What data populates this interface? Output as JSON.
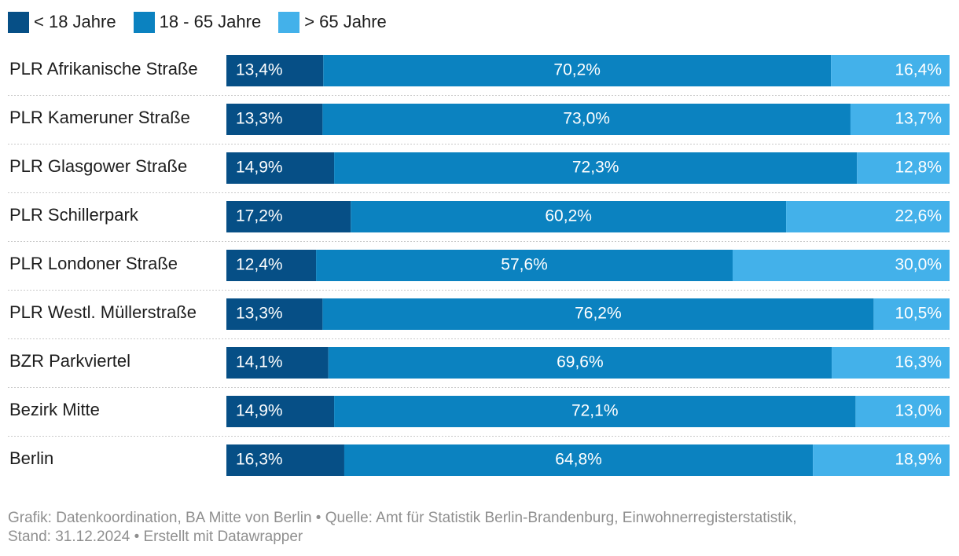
{
  "chart_data": {
    "type": "bar",
    "stacked": true,
    "orientation": "horizontal",
    "unit": "%",
    "categories": [
      "PLR Afrikanische Straße",
      "PLR Kameruner Straße",
      "PLR Glasgower Straße",
      "PLR Schillerpark",
      "PLR Londoner Straße",
      "PLR Westl. Müllerstraße",
      "BZR Parkviertel",
      "Bezirk Mitte",
      "Berlin"
    ],
    "series": [
      {
        "name": "< 18 Jahre",
        "color": "#064f86",
        "values": [
          13.4,
          13.3,
          14.9,
          17.2,
          12.4,
          13.3,
          14.1,
          14.9,
          16.3
        ],
        "labels": [
          "13,4%",
          "13,3%",
          "14,9%",
          "17,2%",
          "12,4%",
          "13,3%",
          "14,1%",
          "14,9%",
          "16,3%"
        ]
      },
      {
        "name": "18 - 65 Jahre",
        "color": "#0b82c0",
        "values": [
          70.2,
          73.0,
          72.3,
          60.2,
          57.6,
          76.2,
          69.6,
          72.1,
          64.8
        ],
        "labels": [
          "70,2%",
          "73,0%",
          "72,3%",
          "60,2%",
          "57,6%",
          "76,2%",
          "69,6%",
          "72,1%",
          "64,8%"
        ]
      },
      {
        "name": "> 65 Jahre",
        "color": "#43b1ea",
        "values": [
          16.4,
          13.7,
          12.8,
          22.6,
          30.0,
          10.5,
          16.3,
          13.0,
          18.9
        ],
        "labels": [
          "16,4%",
          "13,7%",
          "12,8%",
          "22,6%",
          "30,0%",
          "10,5%",
          "16,3%",
          "13,0%",
          "18,9%"
        ]
      }
    ],
    "xlim": [
      0,
      100
    ],
    "legend_position": "top-left",
    "grid": false
  },
  "footer": {
    "line1": "Grafik: Datenkoordination, BA Mitte von Berlin • Quelle: Amt für Statistik Berlin-Brandenburg, Einwohnerregisterstatistik,",
    "line2": "Stand: 31.12.2024 • Erstellt mit Datawrapper"
  }
}
